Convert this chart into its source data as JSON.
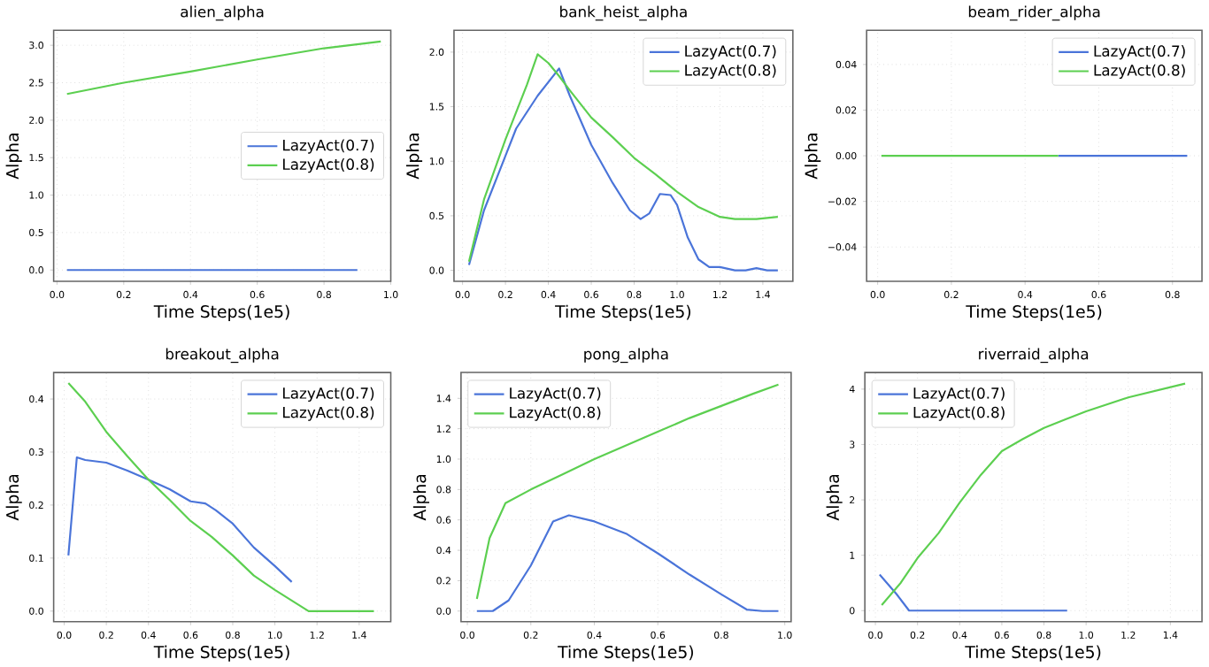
{
  "chart_data": [
    {
      "type": "line",
      "title": "alien_alpha",
      "xlabel": "Time Steps(1e5)",
      "ylabel": "Alpha",
      "xlim": [
        -0.01,
        1.0
      ],
      "ylim": [
        -0.15,
        3.2
      ],
      "xticks": [
        {
          "value": 0,
          "label": "0.0"
        },
        {
          "value": 0.2,
          "label": "0.2"
        },
        {
          "value": 0.4,
          "label": "0.4"
        },
        {
          "value": 0.6,
          "label": "0.6"
        },
        {
          "value": 0.8,
          "label": "0.8"
        },
        {
          "value": 1.0,
          "label": "1.0"
        }
      ],
      "yticks": [
        {
          "value": 0,
          "label": "0.0"
        },
        {
          "value": 0.5,
          "label": "0.5"
        },
        {
          "value": 1.0,
          "label": "1.0"
        },
        {
          "value": 1.5,
          "label": "1.5"
        },
        {
          "value": 2.0,
          "label": "2.0"
        },
        {
          "value": 2.5,
          "label": "2.5"
        },
        {
          "value": 3.0,
          "label": "3.0"
        }
      ],
      "grid": true,
      "legend": "right",
      "series": [
        {
          "name": "LazyAct(0.7)",
          "color": "#4a74d9",
          "x": [
            0.03,
            0.9
          ],
          "values": [
            0,
            0
          ]
        },
        {
          "name": "LazyAct(0.8)",
          "color": "#5ccf50",
          "x": [
            0.03,
            0.2,
            0.4,
            0.6,
            0.8,
            0.97
          ],
          "values": [
            2.35,
            2.5,
            2.65,
            2.81,
            2.96,
            3.05
          ]
        }
      ]
    },
    {
      "type": "line",
      "title": "bank_heist_alpha",
      "xlabel": "Time Steps(1e5)",
      "ylabel": "Alpha",
      "xlim": [
        -0.04,
        1.54
      ],
      "ylim": [
        -0.1,
        2.2
      ],
      "xticks": [
        {
          "value": 0,
          "label": "0.0"
        },
        {
          "value": 0.2,
          "label": "0.2"
        },
        {
          "value": 0.4,
          "label": "0.4"
        },
        {
          "value": 0.6,
          "label": "0.6"
        },
        {
          "value": 0.8,
          "label": "0.8"
        },
        {
          "value": 1.0,
          "label": "1.0"
        },
        {
          "value": 1.2,
          "label": "1.2"
        },
        {
          "value": 1.4,
          "label": "1.4"
        }
      ],
      "yticks": [
        {
          "value": 0,
          "label": "0.0"
        },
        {
          "value": 0.5,
          "label": "0.5"
        },
        {
          "value": 1.0,
          "label": "1.0"
        },
        {
          "value": 1.5,
          "label": "1.5"
        },
        {
          "value": 2.0,
          "label": "2.0"
        }
      ],
      "grid": true,
      "legend": "top right",
      "series": [
        {
          "name": "LazyAct(0.7)",
          "color": "#4a74d9",
          "x": [
            0.03,
            0.1,
            0.2,
            0.25,
            0.35,
            0.45,
            0.5,
            0.6,
            0.7,
            0.78,
            0.83,
            0.87,
            0.92,
            0.97,
            1.0,
            1.05,
            1.1,
            1.15,
            1.2,
            1.27,
            1.32,
            1.37,
            1.42,
            1.47
          ],
          "values": [
            0.05,
            0.55,
            1.05,
            1.3,
            1.6,
            1.85,
            1.6,
            1.15,
            0.8,
            0.55,
            0.47,
            0.52,
            0.7,
            0.69,
            0.6,
            0.3,
            0.1,
            0.03,
            0.03,
            0.0,
            0.0,
            0.02,
            0.0,
            0.0
          ]
        },
        {
          "name": "LazyAct(0.8)",
          "color": "#5ccf50",
          "x": [
            0.03,
            0.1,
            0.2,
            0.3,
            0.35,
            0.4,
            0.45,
            0.5,
            0.6,
            0.7,
            0.8,
            0.9,
            1.0,
            1.1,
            1.2,
            1.27,
            1.37,
            1.47
          ],
          "values": [
            0.08,
            0.65,
            1.2,
            1.7,
            1.98,
            1.9,
            1.78,
            1.65,
            1.4,
            1.22,
            1.03,
            0.88,
            0.72,
            0.58,
            0.49,
            0.47,
            0.47,
            0.49
          ]
        }
      ]
    },
    {
      "type": "line",
      "title": "beam_rider_alpha",
      "xlabel": "Time Steps(1e5)",
      "ylabel": "Alpha",
      "xlim": [
        -0.03,
        0.88
      ],
      "ylim": [
        -0.055,
        0.055
      ],
      "xticks": [
        {
          "value": 0,
          "label": "0.0"
        },
        {
          "value": 0.2,
          "label": "0.2"
        },
        {
          "value": 0.4,
          "label": "0.4"
        },
        {
          "value": 0.6,
          "label": "0.6"
        },
        {
          "value": 0.8,
          "label": "0.8"
        }
      ],
      "yticks": [
        {
          "value": -0.04,
          "label": "−0.04"
        },
        {
          "value": -0.02,
          "label": "−0.02"
        },
        {
          "value": 0,
          "label": "0.00"
        },
        {
          "value": 0.02,
          "label": "0.02"
        },
        {
          "value": 0.04,
          "label": "0.04"
        }
      ],
      "grid": true,
      "legend": "top right",
      "series": [
        {
          "name": "LazyAct(0.7)",
          "color": "#4a74d9",
          "x": [
            0.49,
            0.84
          ],
          "values": [
            0,
            0
          ]
        },
        {
          "name": "LazyAct(0.8)",
          "color": "#5ccf50",
          "x": [
            0.01,
            0.49
          ],
          "values": [
            0,
            0
          ]
        }
      ]
    },
    {
      "type": "line",
      "title": "breakout_alpha",
      "xlabel": "Time Steps(1e5)",
      "ylabel": "Alpha",
      "xlim": [
        -0.05,
        1.55
      ],
      "ylim": [
        -0.02,
        0.45
      ],
      "xticks": [
        {
          "value": 0,
          "label": "0.0"
        },
        {
          "value": 0.2,
          "label": "0.2"
        },
        {
          "value": 0.4,
          "label": "0.4"
        },
        {
          "value": 0.6,
          "label": "0.6"
        },
        {
          "value": 0.8,
          "label": "0.8"
        },
        {
          "value": 1.0,
          "label": "1.0"
        },
        {
          "value": 1.2,
          "label": "1.2"
        },
        {
          "value": 1.4,
          "label": "1.4"
        }
      ],
      "yticks": [
        {
          "value": 0,
          "label": "0.0"
        },
        {
          "value": 0.1,
          "label": "0.1"
        },
        {
          "value": 0.2,
          "label": "0.2"
        },
        {
          "value": 0.3,
          "label": "0.3"
        },
        {
          "value": 0.4,
          "label": "0.4"
        }
      ],
      "grid": true,
      "legend": "top right",
      "series": [
        {
          "name": "LazyAct(0.7)",
          "color": "#4a74d9",
          "x": [
            0.02,
            0.06,
            0.1,
            0.2,
            0.3,
            0.4,
            0.5,
            0.6,
            0.67,
            0.72,
            0.8,
            0.9,
            1.0,
            1.08
          ],
          "values": [
            0.105,
            0.29,
            0.285,
            0.28,
            0.265,
            0.248,
            0.23,
            0.207,
            0.203,
            0.19,
            0.165,
            0.12,
            0.085,
            0.055
          ]
        },
        {
          "name": "LazyAct(0.8)",
          "color": "#5ccf50",
          "x": [
            0.02,
            0.1,
            0.2,
            0.3,
            0.4,
            0.5,
            0.6,
            0.7,
            0.8,
            0.9,
            1.0,
            1.1,
            1.16,
            1.3,
            1.47
          ],
          "values": [
            0.43,
            0.395,
            0.338,
            0.292,
            0.248,
            0.21,
            0.17,
            0.14,
            0.105,
            0.067,
            0.04,
            0.015,
            0.0,
            0.0,
            0.0
          ]
        }
      ]
    },
    {
      "type": "line",
      "title": "pong_alpha",
      "xlabel": "Time Steps(1e5)",
      "ylabel": "Alpha",
      "xlim": [
        -0.02,
        1.02
      ],
      "ylim": [
        -0.07,
        1.57
      ],
      "xticks": [
        {
          "value": 0,
          "label": "0.0"
        },
        {
          "value": 0.2,
          "label": "0.2"
        },
        {
          "value": 0.4,
          "label": "0.4"
        },
        {
          "value": 0.6,
          "label": "0.6"
        },
        {
          "value": 0.8,
          "label": "0.8"
        },
        {
          "value": 1.0,
          "label": "1.0"
        }
      ],
      "yticks": [
        {
          "value": 0,
          "label": "0.0"
        },
        {
          "value": 0.2,
          "label": "0.2"
        },
        {
          "value": 0.4,
          "label": "0.4"
        },
        {
          "value": 0.6,
          "label": "0.6"
        },
        {
          "value": 0.8,
          "label": "0.8"
        },
        {
          "value": 1.0,
          "label": "1.0"
        },
        {
          "value": 1.2,
          "label": "1.2"
        },
        {
          "value": 1.4,
          "label": "1.4"
        }
      ],
      "grid": true,
      "legend": "top left",
      "series": [
        {
          "name": "LazyAct(0.7)",
          "color": "#4a74d9",
          "x": [
            0.03,
            0.08,
            0.13,
            0.2,
            0.27,
            0.32,
            0.4,
            0.5,
            0.6,
            0.7,
            0.8,
            0.88,
            0.93,
            0.98
          ],
          "values": [
            0,
            0,
            0.07,
            0.3,
            0.59,
            0.63,
            0.59,
            0.51,
            0.38,
            0.24,
            0.11,
            0.01,
            0,
            0
          ]
        },
        {
          "name": "LazyAct(0.8)",
          "color": "#5ccf50",
          "x": [
            0.03,
            0.07,
            0.12,
            0.2,
            0.3,
            0.4,
            0.5,
            0.6,
            0.7,
            0.8,
            0.9,
            0.98
          ],
          "values": [
            0.08,
            0.48,
            0.71,
            0.8,
            0.9,
            1.0,
            1.09,
            1.18,
            1.27,
            1.35,
            1.43,
            1.49
          ]
        }
      ]
    },
    {
      "type": "line",
      "title": "riverraid_alpha",
      "xlabel": "Time Steps(1e5)",
      "ylabel": "Alpha",
      "xlim": [
        -0.05,
        1.55
      ],
      "ylim": [
        -0.2,
        4.3
      ],
      "xticks": [
        {
          "value": 0,
          "label": "0.0"
        },
        {
          "value": 0.2,
          "label": "0.2"
        },
        {
          "value": 0.4,
          "label": "0.4"
        },
        {
          "value": 0.6,
          "label": "0.6"
        },
        {
          "value": 0.8,
          "label": "0.8"
        },
        {
          "value": 1.0,
          "label": "1.0"
        },
        {
          "value": 1.2,
          "label": "1.2"
        },
        {
          "value": 1.4,
          "label": "1.4"
        }
      ],
      "yticks": [
        0,
        1,
        2,
        3,
        4
      ],
      "grid": true,
      "legend": "top left",
      "series": [
        {
          "name": "LazyAct(0.7)",
          "color": "#4a74d9",
          "x": [
            0.02,
            0.1,
            0.16,
            0.3,
            0.6,
            0.91
          ],
          "values": [
            0.65,
            0.3,
            0.0,
            0,
            0,
            0
          ]
        },
        {
          "name": "LazyAct(0.8)",
          "color": "#5ccf50",
          "x": [
            0.03,
            0.12,
            0.2,
            0.3,
            0.4,
            0.5,
            0.6,
            0.7,
            0.8,
            0.9,
            1.0,
            1.2,
            1.47
          ],
          "values": [
            0.1,
            0.5,
            0.95,
            1.4,
            1.95,
            2.45,
            2.88,
            3.1,
            3.3,
            3.45,
            3.6,
            3.85,
            4.1
          ]
        }
      ]
    }
  ]
}
